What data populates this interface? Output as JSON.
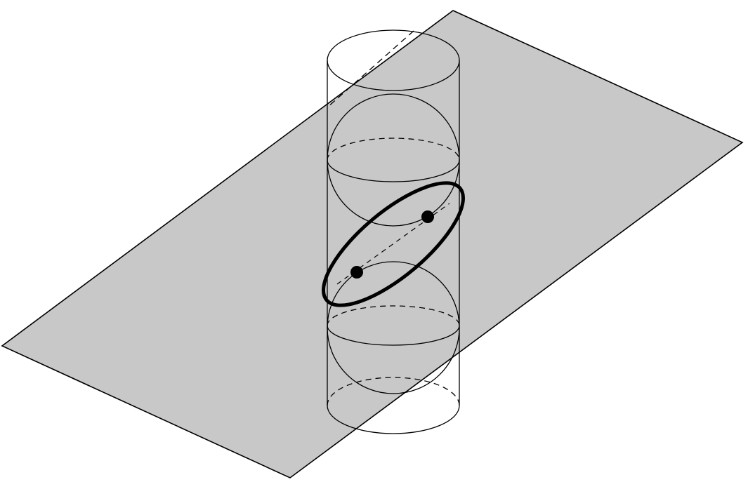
{
  "figure": {
    "description": "",
    "colors": {
      "background": "#ffffff",
      "plane_fill": "#c8c8c8",
      "stroke": "#000000",
      "focus_point": "#000000"
    },
    "elements": [
      "cutting-plane",
      "cylinder",
      "upper-dandelin-sphere",
      "lower-dandelin-sphere",
      "ellipse-section",
      "focus-upper",
      "focus-lower",
      "major-axis"
    ]
  }
}
